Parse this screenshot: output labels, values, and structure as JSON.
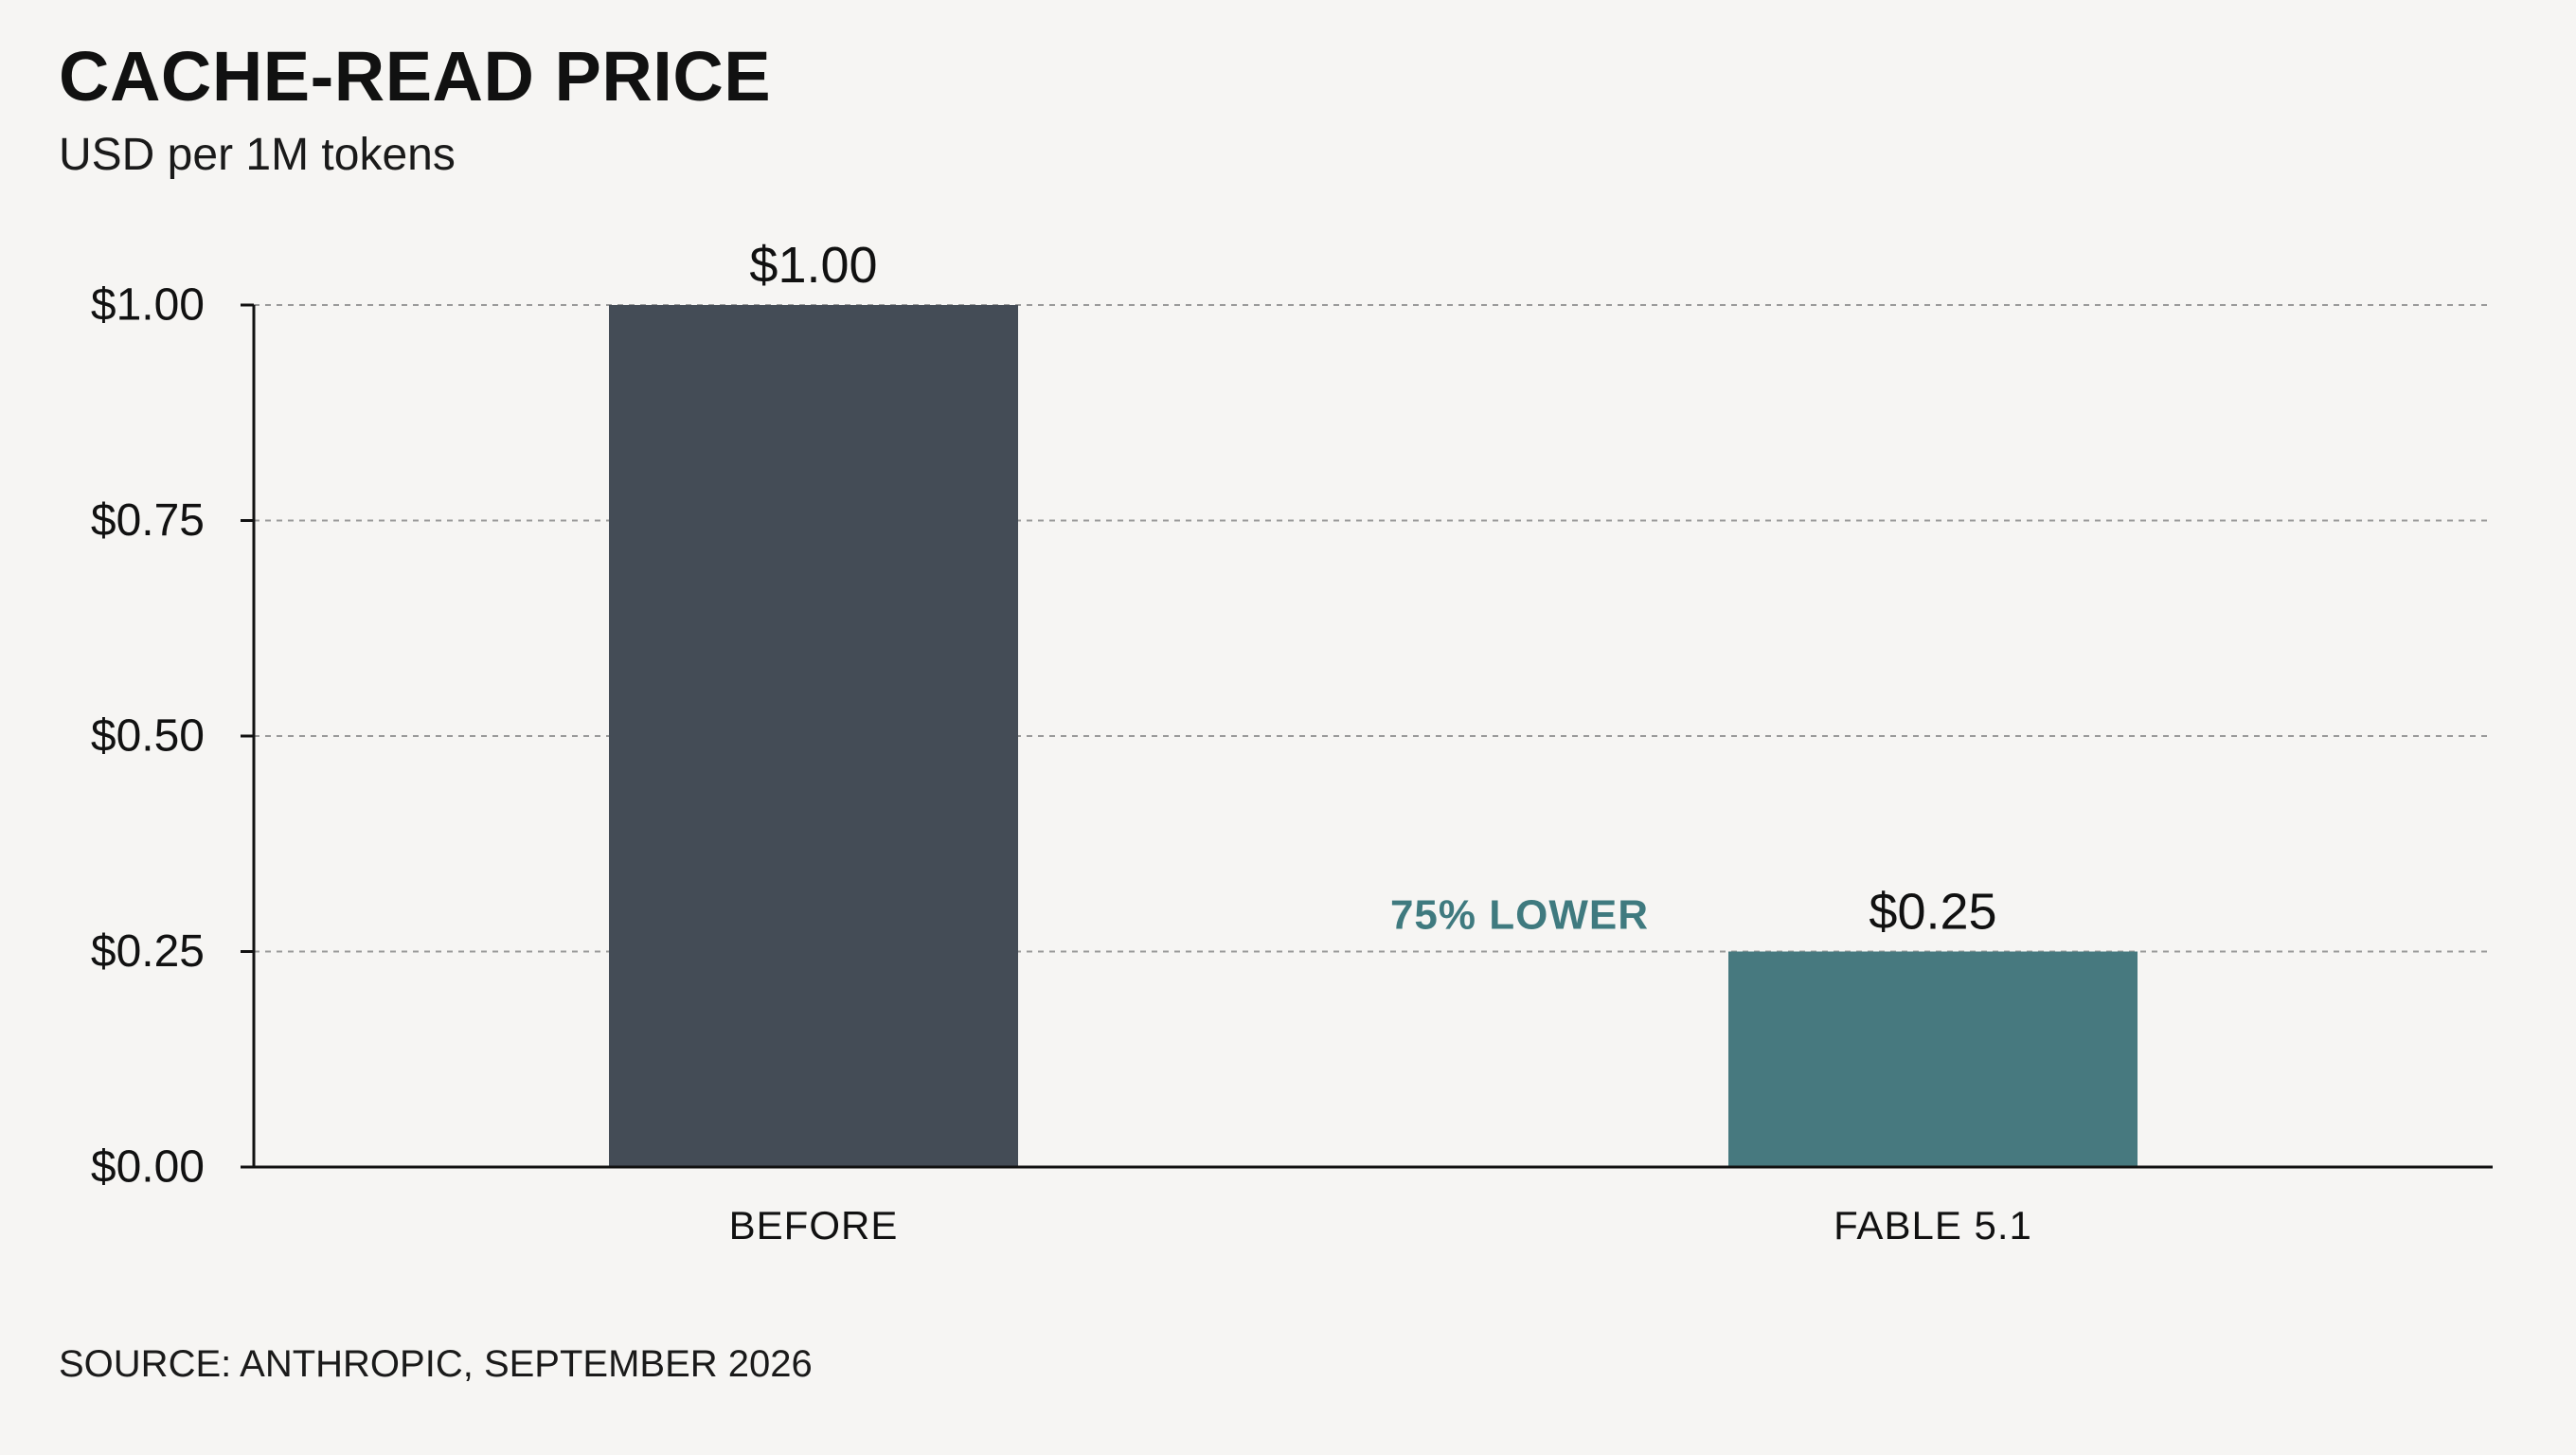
{
  "chart_data": {
    "type": "bar",
    "title": "CACHE-READ PRICE",
    "subtitle": "USD per 1M tokens",
    "categories": [
      "BEFORE",
      "FABLE 5.1"
    ],
    "values": [
      1.0,
      0.25
    ],
    "value_labels": [
      "$1.00",
      "$0.25"
    ],
    "ylim": [
      0,
      1
    ],
    "yticks": [
      0,
      0.25,
      0.5,
      0.75,
      1
    ],
    "ytick_labels": [
      "$0.00",
      "$0.25",
      "$0.50",
      "$0.75",
      "$1.00"
    ],
    "grid": true,
    "annotation": {
      "text": "75% LOWER",
      "color": "#3f7a7f"
    },
    "bar_colors": [
      "#444c56",
      "#47797f"
    ],
    "source": "SOURCE: ANTHROPIC, SEPTEMBER 2026"
  }
}
